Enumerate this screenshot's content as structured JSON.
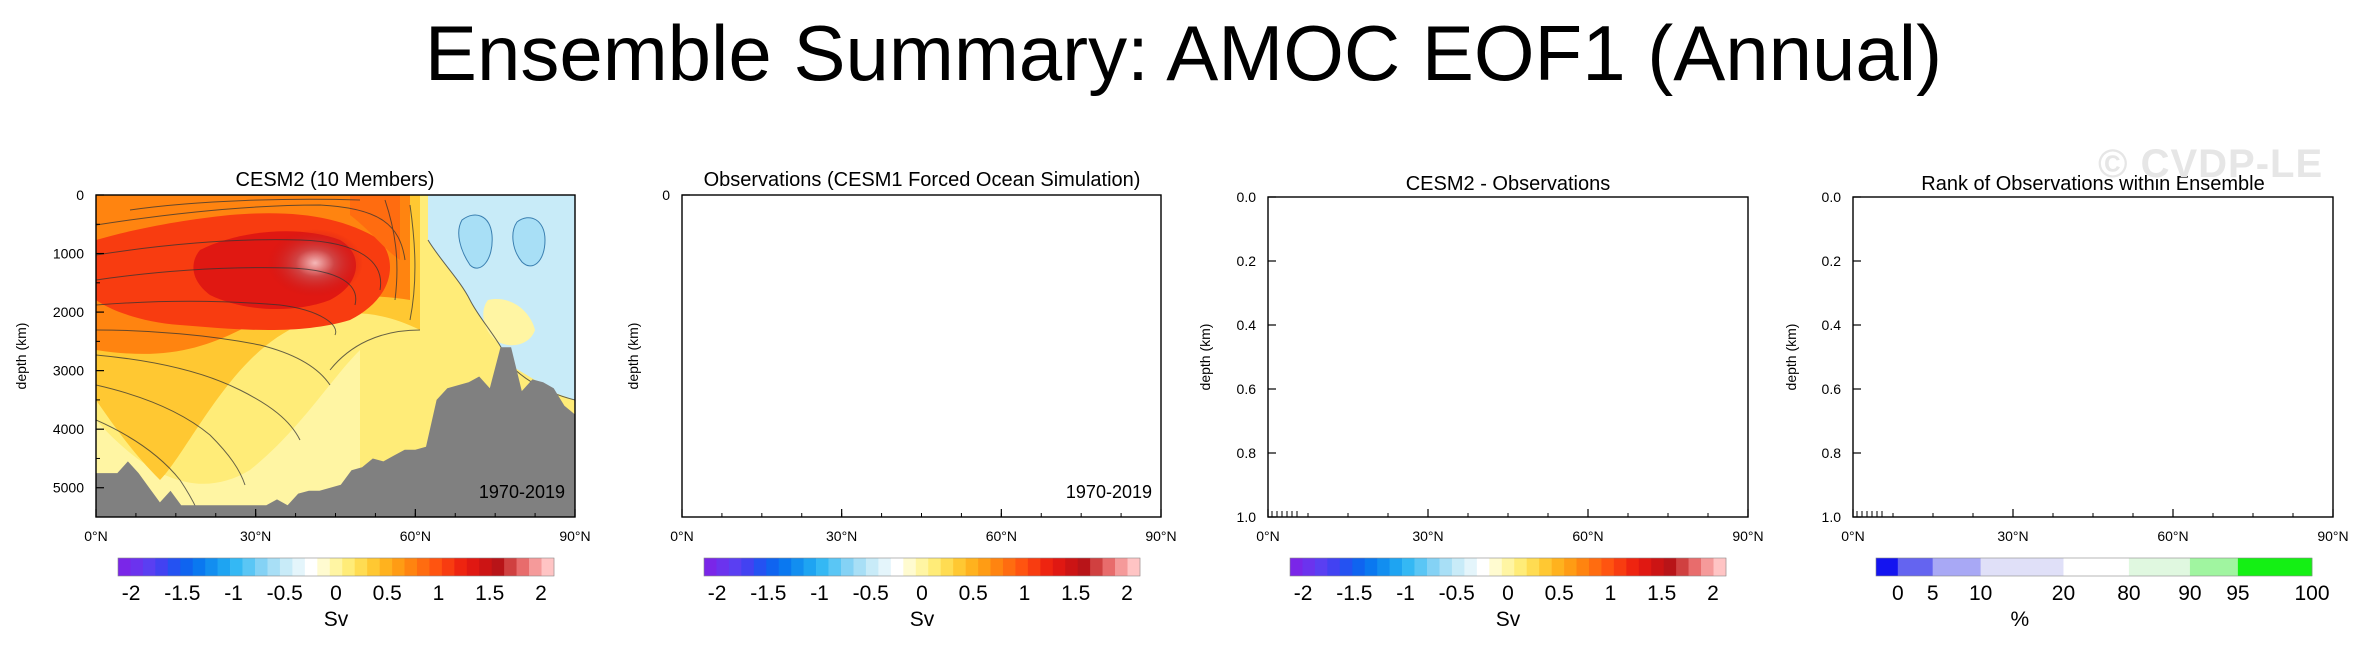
{
  "figure": {
    "title": "Ensemble Summary: AMOC EOF1 (Annual)",
    "watermark": "© CVDP-LE"
  },
  "chart_data": [
    {
      "type": "heatmap",
      "title": "CESM2 (10 Members)",
      "xlabel": "",
      "ylabel": "depth (km)",
      "x_ticks": [
        "0°N",
        "30°N",
        "60°N",
        "90°N"
      ],
      "y_ticks": [
        "0",
        "1000",
        "2000",
        "3000",
        "4000",
        "5000"
      ],
      "xlim": [
        0,
        90
      ],
      "ylim": [
        5500,
        0
      ],
      "annotation": "1970-2019",
      "colorbar": {
        "labels": [
          "-2",
          "-1.5",
          "-1",
          "-0.5",
          "0",
          "0.5",
          "1",
          "1.5",
          "2"
        ],
        "units": "Sv",
        "colors": [
          "#7a26e8",
          "#6b33ee",
          "#5a3ff2",
          "#4242f2",
          "#2452f2",
          "#0f64f0",
          "#0a78f0",
          "#128ef0",
          "#1ea4f2",
          "#34b8f4",
          "#5ac6f5",
          "#84d2f5",
          "#a8dff6",
          "#c8ebf8",
          "#e4f5fb",
          "#ffffff",
          "#fffbd0",
          "#fff5a3",
          "#ffec78",
          "#ffdc52",
          "#ffc832",
          "#ffb21e",
          "#ff9c14",
          "#ff8410",
          "#ff6c10",
          "#ff5410",
          "#f83c10",
          "#ee2410",
          "#e01812",
          "#cc1414",
          "#b81418",
          "#d04040",
          "#e86c6c",
          "#f59a9a",
          "#ffc4c4"
        ]
      },
      "bathymetry_depth_km": [
        4.75,
        4.75,
        4.75,
        4.55,
        4.75,
        5.0,
        5.25,
        5.05,
        5.3,
        5.3,
        5.3,
        5.3,
        5.3,
        5.3,
        5.3,
        5.3,
        5.3,
        5.2,
        5.3,
        5.1,
        5.05,
        5.05,
        5.0,
        4.95,
        4.7,
        4.65,
        4.5,
        4.55,
        4.45,
        4.35,
        4.35,
        4.3,
        3.5,
        3.3,
        3.25,
        3.2,
        3.1,
        3.3,
        2.6,
        2.6,
        3.35,
        3.15,
        3.2,
        3.3,
        3.6,
        3.75,
        3.6,
        3.9,
        3.7,
        4.0,
        4.1,
        4.1,
        4.1,
        4.05,
        4.1,
        4.2
      ],
      "bathymetry_lat": [
        0,
        2,
        4,
        6,
        8,
        10,
        12,
        14,
        16,
        18,
        20,
        22,
        24,
        26,
        28,
        30,
        32,
        34,
        36,
        38,
        40,
        42,
        44,
        46,
        48,
        50,
        52,
        54,
        56,
        58,
        60,
        62,
        64,
        66,
        68,
        70,
        72,
        74,
        76,
        78,
        80,
        82,
        84,
        86,
        88,
        90,
        90,
        90,
        90,
        90,
        90,
        90,
        90,
        90,
        90,
        90
      ],
      "max_center": {
        "lat": 43,
        "depth_m": 1050,
        "value": 2.0
      },
      "negative_region": {
        "lat_range": [
          63,
          90
        ],
        "depth_m_range": [
          0,
          3200
        ],
        "value": -0.2
      }
    },
    {
      "type": "heatmap",
      "title": "Observations (CESM1 Forced Ocean Simulation)",
      "xlabel": "",
      "ylabel": "depth (km)",
      "x_ticks": [
        "0°N",
        "30°N",
        "60°N",
        "90°N"
      ],
      "y_ticks": [
        "0"
      ],
      "xlim": [
        0,
        90
      ],
      "annotation": "1970-2019",
      "colorbar": {
        "labels": [
          "-2",
          "-1.5",
          "-1",
          "-0.5",
          "0",
          "0.5",
          "1",
          "1.5",
          "2"
        ],
        "units": "Sv"
      }
    },
    {
      "type": "heatmap",
      "title": "CESM2 - Observations",
      "xlabel": "",
      "ylabel": "depth (km)",
      "x_ticks": [
        "0°N",
        "30°N",
        "60°N",
        "90°N"
      ],
      "y_ticks": [
        "0.0",
        "0.2",
        "0.4",
        "0.6",
        "0.8",
        "1.0"
      ],
      "xlim": [
        0,
        90
      ],
      "ylim": [
        1.0,
        0.0
      ],
      "colorbar": {
        "labels": [
          "-2",
          "-1.5",
          "-1",
          "-0.5",
          "0",
          "0.5",
          "1",
          "1.5",
          "2"
        ],
        "units": "Sv"
      }
    },
    {
      "type": "heatmap",
      "title": "Rank of Observations within Ensemble",
      "xlabel": "",
      "ylabel": "depth (km)",
      "x_ticks": [
        "0°N",
        "30°N",
        "60°N",
        "90°N"
      ],
      "y_ticks": [
        "0.0",
        "0.2",
        "0.4",
        "0.6",
        "0.8",
        "1.0"
      ],
      "xlim": [
        0,
        90
      ],
      "ylim": [
        1.0,
        0.0
      ],
      "colorbar": {
        "labels": [
          "0",
          "5",
          "10",
          "20",
          "80",
          "90",
          "95",
          "100"
        ],
        "units": "%",
        "colors": [
          "#1414f0",
          "#6464f0",
          "#a8a8f5",
          "#e0e0f8",
          "#ffffff",
          "#e0f8e0",
          "#a0f5a0",
          "#14f014"
        ]
      }
    }
  ]
}
